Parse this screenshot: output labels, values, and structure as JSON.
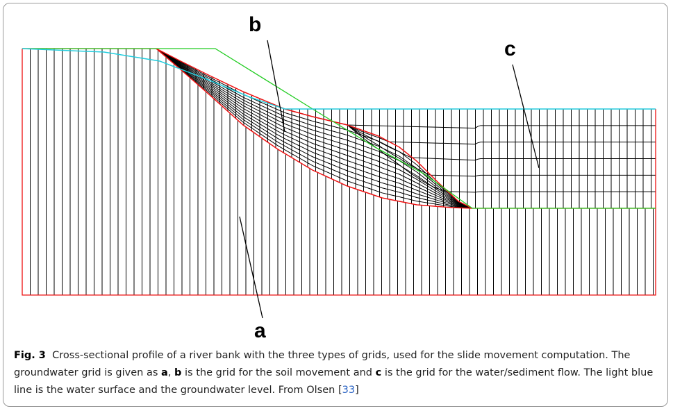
{
  "figure": {
    "labels": {
      "a": "a",
      "b": "b",
      "c": "c"
    },
    "caption": {
      "label": "Fig. 3",
      "parts": [
        "Cross-sectional profile of a river bank with the three types of grids, used for the slide movement computation. The groundwater grid is given as ",
        "a",
        ", ",
        "b",
        " is the grid for the soil movement and ",
        "c",
        " is the grid for the water/sediment flow. The light blue line is the water surface and the groundwater level. From Olsen [",
        "33",
        "]"
      ]
    }
  }
}
